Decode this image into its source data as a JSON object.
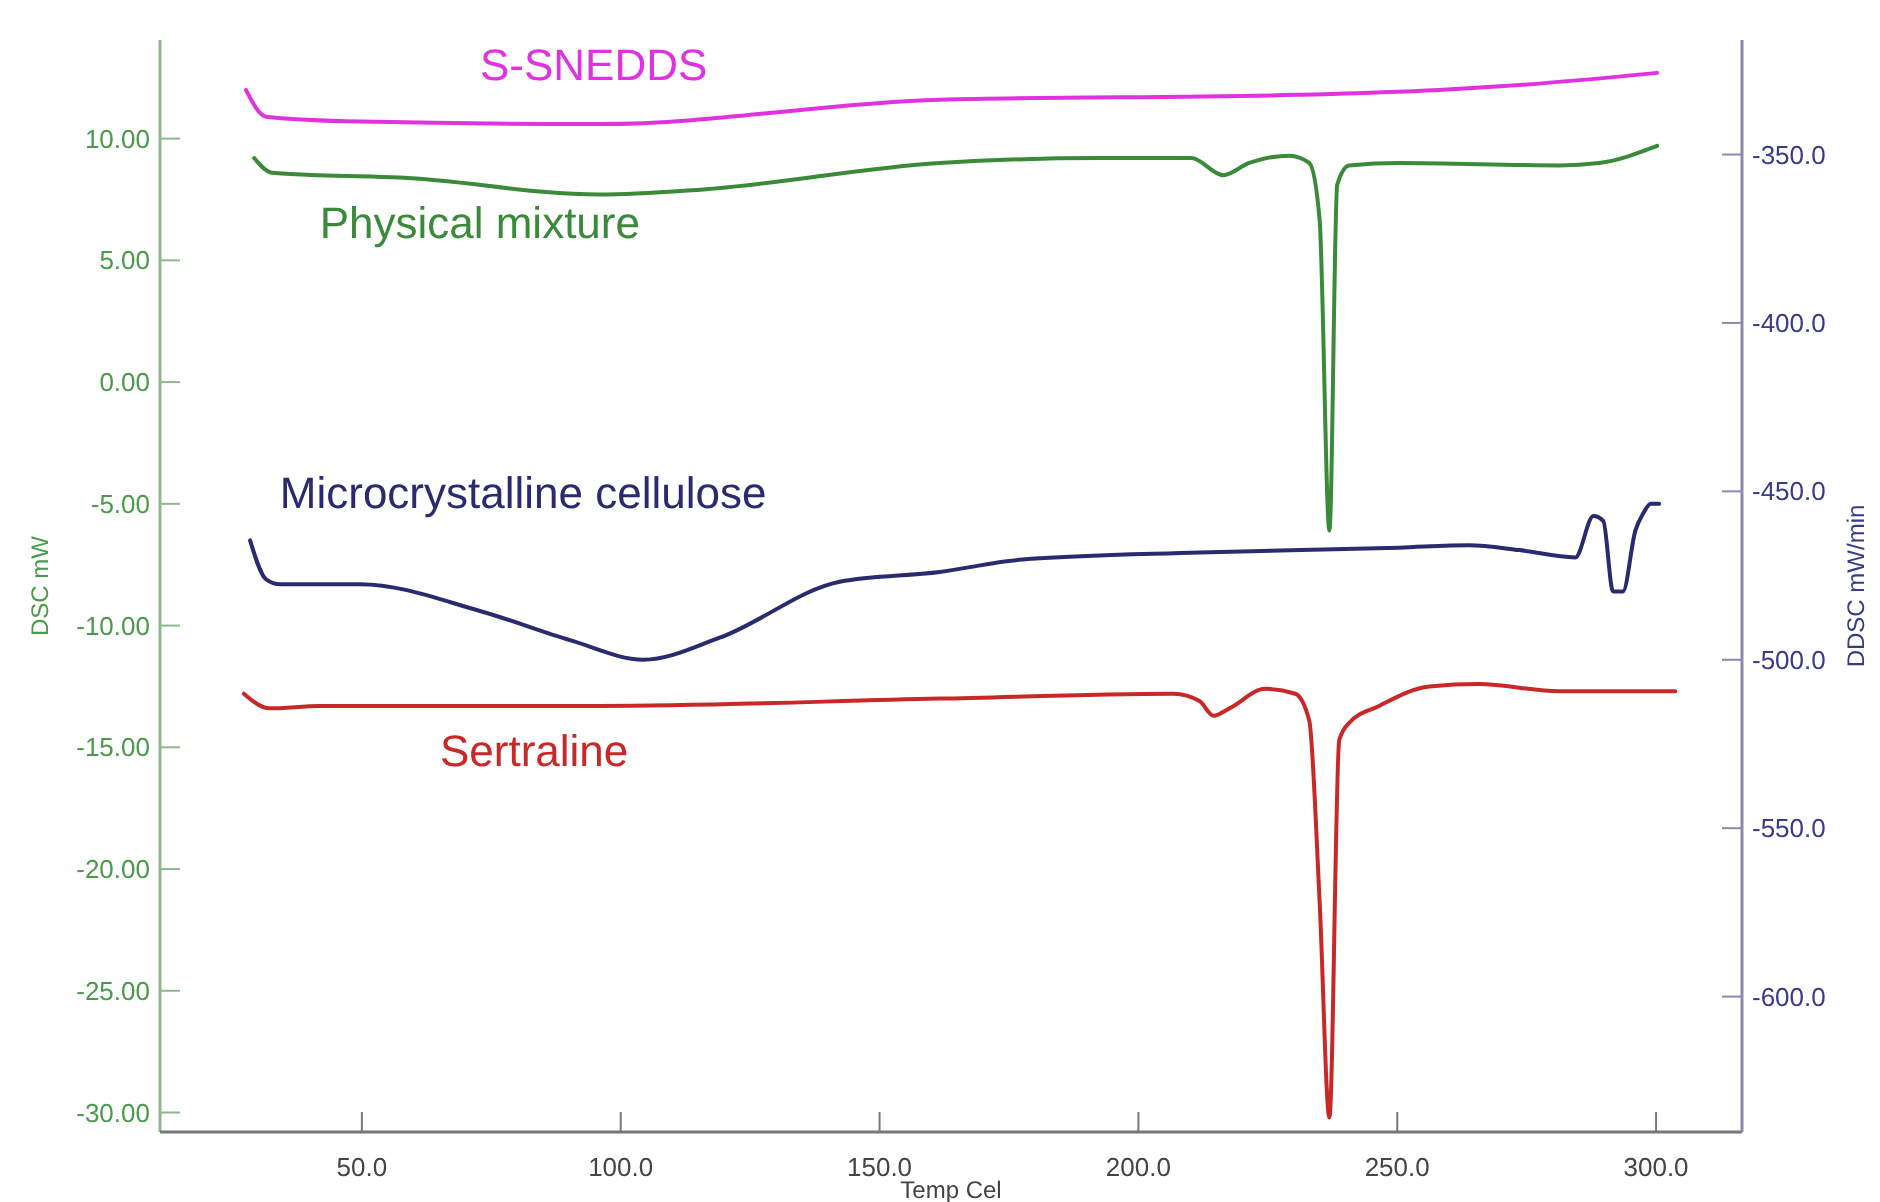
{
  "chart_data": {
    "type": "line",
    "xlabel": "Temp Cel",
    "ylabel": "DSC mW",
    "y2label": "DDSC mW/min",
    "xlim": [
      11,
      316.6
    ],
    "ylim": [
      -30.8,
      14.05
    ],
    "y2lim": [
      -640.2,
      -316
    ],
    "xticks": [
      {
        "value": 50,
        "label": "50.0"
      },
      {
        "value": 100,
        "label": "100.0"
      },
      {
        "value": 150,
        "label": "150.0"
      },
      {
        "value": 200,
        "label": "200.0"
      },
      {
        "value": 250,
        "label": "250.0"
      },
      {
        "value": 300,
        "label": "300.0"
      }
    ],
    "yticks": [
      {
        "value": 10,
        "label": "10.00"
      },
      {
        "value": 5,
        "label": "5.00"
      },
      {
        "value": 0,
        "label": "0.00"
      },
      {
        "value": -5,
        "label": "-5.00"
      },
      {
        "value": -10,
        "label": "-10.00"
      },
      {
        "value": -15,
        "label": "-15.00"
      },
      {
        "value": -20,
        "label": "-20.00"
      },
      {
        "value": -25,
        "label": "-25.00"
      },
      {
        "value": -30,
        "label": "-30.00"
      }
    ],
    "y2ticks": [
      {
        "value": -350,
        "label": "-350.0"
      },
      {
        "value": -400,
        "label": "-400.0"
      },
      {
        "value": -450,
        "label": "-450.0"
      },
      {
        "value": -500,
        "label": "-500.0"
      },
      {
        "value": -550,
        "label": "-550.0"
      },
      {
        "value": -600,
        "label": "-600.0"
      }
    ],
    "grid": false,
    "marker": "none",
    "line_style": "solid",
    "series": [
      {
        "name": "S-SNEDDS",
        "color": "#e032e0",
        "x": [
          27.6,
          31.5,
          49.6,
          96,
          161.6,
          231,
          258,
          273.6,
          300.2
        ],
        "values": [
          12.0,
          10.9,
          10.7,
          10.6,
          11.6,
          11.8,
          12.0,
          12.2,
          12.7
        ]
      },
      {
        "name": "Physical mixture",
        "color": "#3a8a3a",
        "x": [
          29.2,
          32.6,
          41.9,
          57.3,
          95.9,
          115.3,
          161.6,
          192.5,
          210.2,
          216.4,
          221.4,
          229.2,
          233,
          235,
          236.9,
          238.4,
          240.7,
          250.4,
          281.3,
          289,
          300.2
        ],
        "values": [
          9.2,
          8.6,
          8.5,
          8.4,
          7.7,
          7.9,
          9.0,
          9.2,
          9.2,
          8.5,
          9.0,
          9.3,
          9.0,
          6.7,
          -6.1,
          8.1,
          8.9,
          9.0,
          8.9,
          9.0,
          9.7
        ]
      },
      {
        "name": "Microcrystalline cellulose",
        "color": "#2a2a6e",
        "x": [
          28.4,
          31.5,
          34.2,
          49.6,
          72.8,
          90.2,
          104.4,
          119.1,
          142.3,
          161.6,
          177,
          211.8,
          250.4,
          263.9,
          273.6,
          284.4,
          287.9,
          289.8,
          291.7,
          293.6,
          296,
          297.5,
          299,
          300.6
        ],
        "values": [
          -6.5,
          -8.1,
          -8.3,
          -8.3,
          -9.4,
          -10.6,
          -11.4,
          -10.5,
          -8.2,
          -7.8,
          -7.3,
          -7.0,
          -6.8,
          -6.7,
          -6.9,
          -7.2,
          -5.5,
          -5.7,
          -8.6,
          -8.6,
          -6.1,
          -5.4,
          -5.0,
          -5.0
        ]
      },
      {
        "name": "Sertraline",
        "color": "#c82828",
        "x": [
          27.2,
          32.2,
          41.9,
          96,
          161.6,
          206.8,
          211.8,
          214.5,
          217.6,
          224.5,
          230.3,
          233,
          235,
          236.9,
          238.8,
          240.7,
          246.5,
          256.2,
          265.8,
          281.3,
          289,
          303.7
        ],
        "values": [
          -12.8,
          -13.4,
          -13.3,
          -13.3,
          -13.0,
          -12.8,
          -13.1,
          -13.7,
          -13.4,
          -12.6,
          -12.8,
          -13.9,
          -21.3,
          -30.2,
          -14.7,
          -14.0,
          -13.3,
          -12.5,
          -12.4,
          -12.7,
          -12.7,
          -12.7
        ]
      }
    ]
  }
}
